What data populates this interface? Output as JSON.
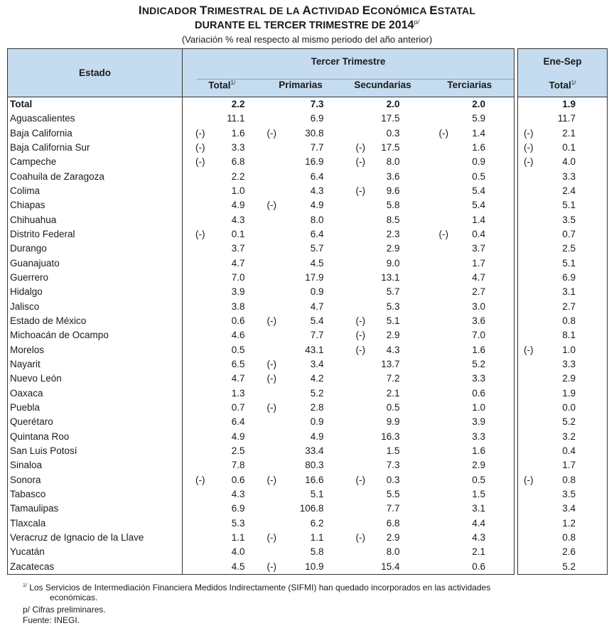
{
  "title": {
    "line1_parts": [
      {
        "cap": "I",
        "rest": "NDICADOR "
      },
      {
        "cap": "T",
        "rest": "RIMESTRAL DE LA "
      },
      {
        "cap": "A",
        "rest": "CTIVIDAD "
      },
      {
        "cap": "E",
        "rest": "CONÓMICA "
      },
      {
        "cap": "E",
        "rest": "STATAL"
      }
    ],
    "line2": "DURANTE EL TERCER TRIMESTRE DE ",
    "year": "2014",
    "year_sup": "p/",
    "subtitle": "(Variación % real respecto al mismo periodo del año anterior)"
  },
  "header": {
    "estado": "Estado",
    "tercer_trimestre": "Tercer Trimestre",
    "ene_sep": "Ene-Sep",
    "total": "Total",
    "total_sup": "1/",
    "primarias": "Primarias",
    "secundarias": "Secundarias",
    "terciarias": "Terciarias",
    "total2": "Total",
    "total2_sup": "1/"
  },
  "neg_marker": "(-)",
  "rows": [
    {
      "estado": "Total",
      "total": "2.2",
      "primarias": "7.3",
      "secundarias": "2.0",
      "terciarias": "2.0",
      "enesep": "1.9",
      "bold": true
    },
    {
      "estado": "Aguascalientes",
      "total": "11.1",
      "primarias": "6.9",
      "secundarias": "17.5",
      "terciarias": "5.9",
      "enesep": "11.7"
    },
    {
      "estado": "Baja California",
      "total": "1.6",
      "total_neg": true,
      "primarias": "30.8",
      "primarias_neg": true,
      "secundarias": "0.3",
      "terciarias": "1.4",
      "terciarias_neg": true,
      "enesep": "2.1",
      "enesep_neg": true
    },
    {
      "estado": "Baja California Sur",
      "total": "3.3",
      "total_neg": true,
      "primarias": "7.7",
      "secundarias": "17.5",
      "secundarias_neg": true,
      "terciarias": "1.6",
      "enesep": "0.1",
      "enesep_neg": true
    },
    {
      "estado": "Campeche",
      "total": "6.8",
      "total_neg": true,
      "primarias": "16.9",
      "secundarias": "8.0",
      "secundarias_neg": true,
      "terciarias": "0.9",
      "enesep": "4.0",
      "enesep_neg": true
    },
    {
      "estado": "Coahuila de Zaragoza",
      "total": "2.2",
      "primarias": "6.4",
      "secundarias": "3.6",
      "terciarias": "0.5",
      "enesep": "3.3"
    },
    {
      "estado": "Colima",
      "total": "1.0",
      "primarias": "4.3",
      "secundarias": "9.6",
      "secundarias_neg": true,
      "terciarias": "5.4",
      "enesep": "2.4"
    },
    {
      "estado": "Chiapas",
      "total": "4.9",
      "primarias": "4.9",
      "primarias_neg": true,
      "secundarias": "5.8",
      "terciarias": "5.4",
      "enesep": "5.1"
    },
    {
      "estado": "Chihuahua",
      "total": "4.3",
      "primarias": "8.0",
      "secundarias": "8.5",
      "terciarias": "1.4",
      "enesep": "3.5"
    },
    {
      "estado": "Distrito Federal",
      "total": "0.1",
      "total_neg": true,
      "primarias": "6.4",
      "secundarias": "2.3",
      "terciarias": "0.4",
      "terciarias_neg": true,
      "enesep": "0.7"
    },
    {
      "estado": "Durango",
      "total": "3.7",
      "primarias": "5.7",
      "secundarias": "2.9",
      "terciarias": "3.7",
      "enesep": "2.5"
    },
    {
      "estado": "Guanajuato",
      "total": "4.7",
      "primarias": "4.5",
      "secundarias": "9.0",
      "terciarias": "1.7",
      "enesep": "5.1"
    },
    {
      "estado": "Guerrero",
      "total": "7.0",
      "primarias": "17.9",
      "secundarias": "13.1",
      "terciarias": "4.7",
      "enesep": "6.9"
    },
    {
      "estado": "Hidalgo",
      "total": "3.9",
      "primarias": "0.9",
      "secundarias": "5.7",
      "terciarias": "2.7",
      "enesep": "3.1"
    },
    {
      "estado": "Jalisco",
      "total": "3.8",
      "primarias": "4.7",
      "secundarias": "5.3",
      "terciarias": "3.0",
      "enesep": "2.7"
    },
    {
      "estado": "Estado de México",
      "total": "0.6",
      "primarias": "5.4",
      "primarias_neg": true,
      "secundarias": "5.1",
      "secundarias_neg": true,
      "terciarias": "3.6",
      "enesep": "0.8"
    },
    {
      "estado": "Michoacán de Ocampo",
      "total": "4.6",
      "primarias": "7.7",
      "secundarias": "2.9",
      "secundarias_neg": true,
      "terciarias": "7.0",
      "enesep": "8.1"
    },
    {
      "estado": "Morelos",
      "total": "0.5",
      "primarias": "43.1",
      "secundarias": "4.3",
      "secundarias_neg": true,
      "terciarias": "1.6",
      "enesep": "1.0",
      "enesep_neg": true
    },
    {
      "estado": "Nayarit",
      "total": "6.5",
      "primarias": "3.4",
      "primarias_neg": true,
      "secundarias": "13.7",
      "terciarias": "5.2",
      "enesep": "3.3"
    },
    {
      "estado": "Nuevo León",
      "total": "4.7",
      "primarias": "4.2",
      "primarias_neg": true,
      "secundarias": "7.2",
      "terciarias": "3.3",
      "enesep": "2.9"
    },
    {
      "estado": "Oaxaca",
      "total": "1.3",
      "primarias": "5.2",
      "secundarias": "2.1",
      "terciarias": "0.6",
      "enesep": "1.9"
    },
    {
      "estado": "Puebla",
      "total": "0.7",
      "primarias": "2.8",
      "primarias_neg": true,
      "secundarias": "0.5",
      "terciarias": "1.0",
      "enesep": "0.0"
    },
    {
      "estado": "Querétaro",
      "total": "6.4",
      "primarias": "0.9",
      "secundarias": "9.9",
      "terciarias": "3.9",
      "enesep": "5.2"
    },
    {
      "estado": "Quintana Roo",
      "total": "4.9",
      "primarias": "4.9",
      "secundarias": "16.3",
      "terciarias": "3.3",
      "enesep": "3.2"
    },
    {
      "estado": "San Luis Potosí",
      "total": "2.5",
      "primarias": "33.4",
      "secundarias": "1.5",
      "terciarias": "1.6",
      "enesep": "0.4"
    },
    {
      "estado": "Sinaloa",
      "total": "7.8",
      "primarias": "80.3",
      "secundarias": "7.3",
      "terciarias": "2.9",
      "enesep": "1.7"
    },
    {
      "estado": "Sonora",
      "total": "0.6",
      "total_neg": true,
      "primarias": "16.6",
      "primarias_neg": true,
      "secundarias": "0.3",
      "secundarias_neg": true,
      "terciarias": "0.5",
      "enesep": "0.8",
      "enesep_neg": true
    },
    {
      "estado": "Tabasco",
      "total": "4.3",
      "primarias": "5.1",
      "secundarias": "5.5",
      "terciarias": "1.5",
      "enesep": "3.5"
    },
    {
      "estado": "Tamaulipas",
      "total": "6.9",
      "primarias": "106.8",
      "secundarias": "7.7",
      "terciarias": "3.1",
      "enesep": "3.4"
    },
    {
      "estado": "Tlaxcala",
      "total": "5.3",
      "primarias": "6.2",
      "secundarias": "6.8",
      "terciarias": "4.4",
      "enesep": "1.2"
    },
    {
      "estado": "Veracruz de Ignacio de la Llave",
      "total": "1.1",
      "primarias": "1.1",
      "primarias_neg": true,
      "secundarias": "2.9",
      "secundarias_neg": true,
      "terciarias": "4.3",
      "enesep": "0.8"
    },
    {
      "estado": "Yucatán",
      "total": "4.0",
      "primarias": "5.8",
      "secundarias": "8.0",
      "terciarias": "2.1",
      "enesep": "2.6"
    },
    {
      "estado": "Zacatecas",
      "total": "4.5",
      "primarias": "10.9",
      "primarias_neg": true,
      "secundarias": "15.4",
      "terciarias": "0.6",
      "enesep": "5.2"
    }
  ],
  "footnotes": {
    "note1_sup": "1/",
    "note1_line1": "Los Servicios de Intermediación Financiera Medidos Indirectamente (SIFMI) han quedado incorporados en las actividades",
    "note1_line2": "económicas.",
    "note2": "p/ Cifras preliminares.",
    "source": "Fuente: INEGI."
  }
}
